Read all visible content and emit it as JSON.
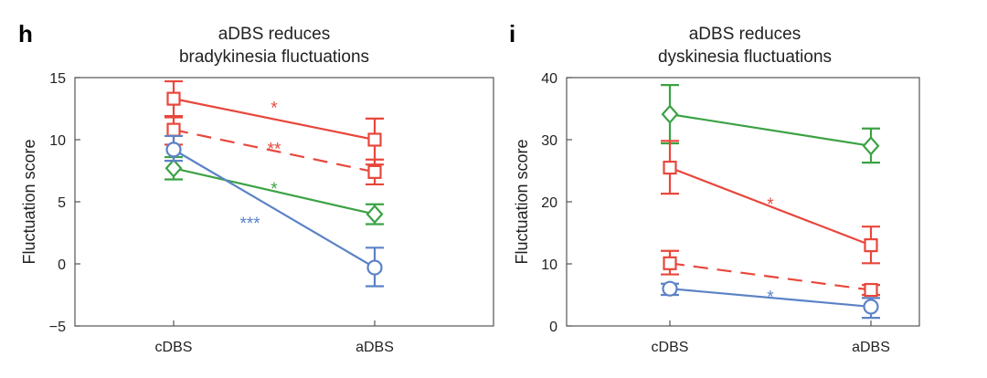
{
  "chart_data": [
    {
      "type": "line",
      "panel_letter": "h",
      "title": "aDBS reduces\nbradykinesia fluctuations",
      "ylabel": "Fluctuation score",
      "xlabel": "",
      "categories": [
        "cDBS",
        "aDBS"
      ],
      "ylim": [
        -5,
        15
      ],
      "yticks": [
        -5,
        0,
        5,
        10,
        15
      ],
      "grid": false,
      "series": [
        {
          "color": "#e8473c",
          "marker": "square",
          "dash": false,
          "values": [
            13.3,
            10.0
          ],
          "err_low": [
            11.9,
            8.0
          ],
          "err_high": [
            14.7,
            11.7
          ],
          "sig": "*",
          "sig_pos": [
            0.5,
            12.6
          ]
        },
        {
          "color": "#e8473c",
          "marker": "square",
          "dash": true,
          "values": [
            10.8,
            7.4
          ],
          "err_low": [
            9.6,
            6.4
          ],
          "err_high": [
            11.8,
            8.4
          ],
          "sig": "**",
          "sig_pos": [
            0.5,
            9.3
          ]
        },
        {
          "color": "#3ba244",
          "marker": "diamond",
          "dash": false,
          "values": [
            7.7,
            4.0
          ],
          "err_low": [
            6.8,
            3.2
          ],
          "err_high": [
            8.6,
            4.8
          ],
          "sig": "*",
          "sig_pos": [
            0.5,
            6.1
          ]
        },
        {
          "color": "#5b82c6",
          "marker": "circle",
          "dash": false,
          "values": [
            9.2,
            -0.3
          ],
          "err_low": [
            8.3,
            -1.8
          ],
          "err_high": [
            10.3,
            1.3
          ],
          "sig": "***",
          "sig_pos": [
            0.38,
            3.3
          ]
        }
      ]
    },
    {
      "type": "line",
      "panel_letter": "i",
      "title": "aDBS reduces\ndyskinesia fluctuations",
      "ylabel": "Fluctuation score",
      "xlabel": "",
      "categories": [
        "cDBS",
        "aDBS"
      ],
      "ylim": [
        0,
        40
      ],
      "yticks": [
        0,
        10,
        20,
        30,
        40
      ],
      "grid": false,
      "series": [
        {
          "color": "#3ba244",
          "marker": "diamond",
          "dash": false,
          "values": [
            34.1,
            29.0
          ],
          "err_low": [
            29.4,
            26.3
          ],
          "err_high": [
            38.8,
            31.8
          ]
        },
        {
          "color": "#e8473c",
          "marker": "square",
          "dash": false,
          "values": [
            25.5,
            13.0
          ],
          "err_low": [
            21.3,
            10.1
          ],
          "err_high": [
            29.8,
            16.0
          ],
          "sig": "*",
          "sig_pos": [
            0.5,
            19.7
          ]
        },
        {
          "color": "#e8473c",
          "marker": "square",
          "dash": true,
          "values": [
            10.1,
            5.8
          ],
          "err_low": [
            8.3,
            5.0
          ],
          "err_high": [
            12.1,
            6.6
          ]
        },
        {
          "color": "#5b82c6",
          "marker": "circle",
          "dash": false,
          "values": [
            6.0,
            3.1
          ],
          "err_low": [
            5.0,
            1.3
          ],
          "err_high": [
            6.8,
            4.5
          ],
          "sig": "*",
          "sig_pos": [
            0.5,
            4.8
          ]
        }
      ]
    }
  ]
}
